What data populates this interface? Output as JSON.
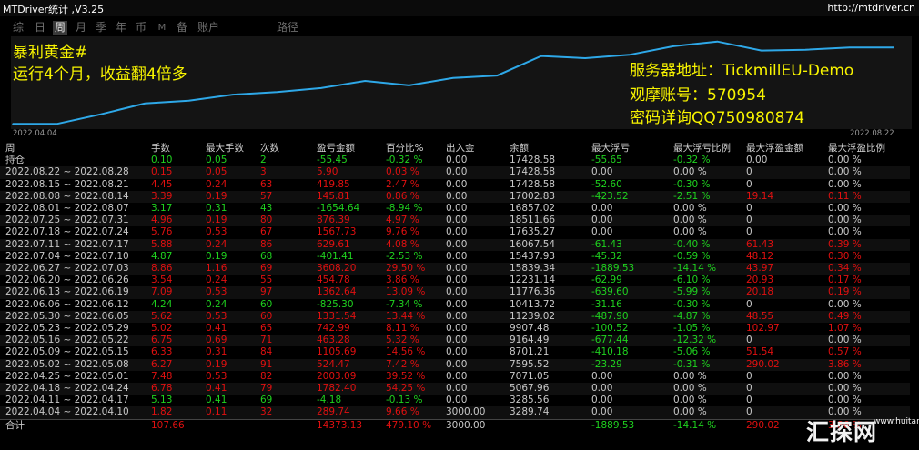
{
  "window": {
    "title": "MTDriver统计 ,V3.25",
    "url": "http://mtdriver.cn"
  },
  "tabs": [
    {
      "label": "综",
      "active": false
    },
    {
      "label": "日",
      "active": false
    },
    {
      "label": "周",
      "active": true
    },
    {
      "label": "月",
      "active": false
    },
    {
      "label": "季",
      "active": false
    },
    {
      "label": "年",
      "active": false
    },
    {
      "label": "币",
      "active": false
    },
    {
      "label": "M",
      "active": false
    },
    {
      "label": "备",
      "active": false
    },
    {
      "label": "账户",
      "active": false
    },
    {
      "label": "路径",
      "active": false
    }
  ],
  "chart": {
    "line_color": "#2ea8e8",
    "start_date": "2022.04.04",
    "end_date": "2022.08.22",
    "annotation_left": [
      "暴利黄金#",
      "运行4个月，收益翻4倍多"
    ],
    "annotation_right": [
      "服务器地址：TickmillEU-Demo",
      "观摩账号：570954",
      "密码详询QQ750980874"
    ]
  },
  "chart_data": {
    "type": "line",
    "title": "",
    "x": [
      "2022.04.04",
      "2022.04.11",
      "2022.04.18",
      "2022.04.25",
      "2022.05.02",
      "2022.05.09",
      "2022.05.16",
      "2022.05.23",
      "2022.05.30",
      "2022.06.06",
      "2022.06.13",
      "2022.06.20",
      "2022.06.27",
      "2022.07.04",
      "2022.07.11",
      "2022.07.18",
      "2022.07.25",
      "2022.08.01",
      "2022.08.08",
      "2022.08.15",
      "2022.08.22"
    ],
    "series": [
      {
        "values": [
          3289.74,
          3285.56,
          5067.96,
          7071.05,
          7595.52,
          8701.21,
          9164.49,
          9907.48,
          11239.02,
          10413.72,
          11776.36,
          12231.14,
          15839.34,
          15437.93,
          16067.54,
          17635.27,
          18511.66,
          16857.02,
          17002.83,
          17428.58,
          17428.58
        ]
      }
    ]
  },
  "table": {
    "headers": [
      "周",
      "手数",
      "最大手数",
      "次数",
      "盈亏金额",
      "百分比%",
      "出入金",
      "余额",
      "最大浮亏",
      "最大浮亏比例",
      "最大浮盈金额",
      "最大浮盈比例"
    ],
    "rows": [
      {
        "c": [
          "持仓",
          "0.10",
          "0.05",
          "2",
          "-55.45",
          "-0.32 %",
          "0.00",
          "17428.58",
          "-55.65",
          "-0.32 %",
          "0.00",
          "0.00 %"
        ],
        "t": "neg"
      },
      {
        "c": [
          "2022.08.22 ~ 2022.08.28",
          "0.15",
          "0.05",
          "3",
          "5.90",
          "0.03 %",
          "0.00",
          "17428.58",
          "0.00",
          "0.00 %",
          "0",
          "0.00 %"
        ],
        "t": "pos"
      },
      {
        "c": [
          "2022.08.15 ~ 2022.08.21",
          "4.45",
          "0.24",
          "63",
          "419.85",
          "2.47 %",
          "0.00",
          "17428.58",
          "-52.60",
          "-0.30 %",
          "0",
          "0.00 %"
        ],
        "t": "pos"
      },
      {
        "c": [
          "2022.08.08 ~ 2022.08.14",
          "3.39",
          "0.19",
          "57",
          "145.81",
          "0.86 %",
          "0.00",
          "17002.83",
          "-423.52",
          "-2.51 %",
          "19.14",
          "0.11 %"
        ],
        "t": "pos"
      },
      {
        "c": [
          "2022.08.01 ~ 2022.08.07",
          "3.17",
          "0.31",
          "43",
          "-1654.64",
          "-8.94 %",
          "0.00",
          "16857.02",
          "0.00",
          "0.00 %",
          "0",
          "0.00 %"
        ],
        "t": "neg"
      },
      {
        "c": [
          "2022.07.25 ~ 2022.07.31",
          "4.96",
          "0.19",
          "80",
          "876.39",
          "4.97 %",
          "0.00",
          "18511.66",
          "0.00",
          "0.00 %",
          "0",
          "0.00 %"
        ],
        "t": "pos"
      },
      {
        "c": [
          "2022.07.18 ~ 2022.07.24",
          "5.76",
          "0.53",
          "67",
          "1567.73",
          "9.76 %",
          "0.00",
          "17635.27",
          "0.00",
          "0.00 %",
          "0",
          "0.00 %"
        ],
        "t": "pos"
      },
      {
        "c": [
          "2022.07.11 ~ 2022.07.17",
          "5.88",
          "0.24",
          "86",
          "629.61",
          "4.08 %",
          "0.00",
          "16067.54",
          "-61.43",
          "-0.40 %",
          "61.43",
          "0.39 %"
        ],
        "t": "pos"
      },
      {
        "c": [
          "2022.07.04 ~ 2022.07.10",
          "4.87",
          "0.19",
          "68",
          "-401.41",
          "-2.53 %",
          "0.00",
          "15437.93",
          "-45.32",
          "-0.59 %",
          "48.12",
          "0.30 %"
        ],
        "t": "neg"
      },
      {
        "c": [
          "2022.06.27 ~ 2022.07.03",
          "8.86",
          "1.16",
          "69",
          "3608.20",
          "29.50 %",
          "0.00",
          "15839.34",
          "-1889.53",
          "-14.14 %",
          "43.97",
          "0.34 %"
        ],
        "t": "pos"
      },
      {
        "c": [
          "2022.06.20 ~ 2022.06.26",
          "3.54",
          "0.24",
          "55",
          "454.78",
          "3.86 %",
          "0.00",
          "12231.14",
          "-62.99",
          "-6.10 %",
          "20.93",
          "0.17 %"
        ],
        "t": "pos"
      },
      {
        "c": [
          "2022.06.13 ~ 2022.06.19",
          "7.09",
          "0.53",
          "97",
          "1362.64",
          "13.09 %",
          "0.00",
          "11776.36",
          "-639.60",
          "-5.99 %",
          "20.18",
          "0.19 %"
        ],
        "t": "pos"
      },
      {
        "c": [
          "2022.06.06 ~ 2022.06.12",
          "4.24",
          "0.24",
          "60",
          "-825.30",
          "-7.34 %",
          "0.00",
          "10413.72",
          "-31.16",
          "-0.30 %",
          "0",
          "0.00 %"
        ],
        "t": "neg"
      },
      {
        "c": [
          "2022.05.30 ~ 2022.06.05",
          "5.62",
          "0.53",
          "60",
          "1331.54",
          "13.44 %",
          "0.00",
          "11239.02",
          "-487.90",
          "-4.87 %",
          "48.55",
          "0.49 %"
        ],
        "t": "pos"
      },
      {
        "c": [
          "2022.05.23 ~ 2022.05.29",
          "5.02",
          "0.41",
          "65",
          "742.99",
          "8.11 %",
          "0.00",
          "9907.48",
          "-100.52",
          "-1.05 %",
          "102.97",
          "1.07 %"
        ],
        "t": "pos"
      },
      {
        "c": [
          "2022.05.16 ~ 2022.05.22",
          "6.75",
          "0.69",
          "71",
          "463.28",
          "5.32 %",
          "0.00",
          "9164.49",
          "-677.44",
          "-12.32 %",
          "0",
          "0.00 %"
        ],
        "t": "pos"
      },
      {
        "c": [
          "2022.05.09 ~ 2022.05.15",
          "6.33",
          "0.31",
          "84",
          "1105.69",
          "14.56 %",
          "0.00",
          "8701.21",
          "-410.18",
          "-5.06 %",
          "51.54",
          "0.57 %"
        ],
        "t": "pos"
      },
      {
        "c": [
          "2022.05.02 ~ 2022.05.08",
          "6.27",
          "0.19",
          "91",
          "524.47",
          "7.42 %",
          "0.00",
          "7595.52",
          "-23.29",
          "-0.31 %",
          "290.02",
          "3.86 %"
        ],
        "t": "pos"
      },
      {
        "c": [
          "2022.04.25 ~ 2022.05.01",
          "7.48",
          "0.53",
          "82",
          "2003.09",
          "39.52 %",
          "0.00",
          "7071.05",
          "0.00",
          "0.00 %",
          "0",
          "0.00 %"
        ],
        "t": "pos"
      },
      {
        "c": [
          "2022.04.18 ~ 2022.04.24",
          "6.78",
          "0.41",
          "79",
          "1782.40",
          "54.25 %",
          "0.00",
          "5067.96",
          "0.00",
          "0.00 %",
          "0",
          "0.00 %"
        ],
        "t": "pos"
      },
      {
        "c": [
          "2022.04.11 ~ 2022.04.17",
          "5.13",
          "0.41",
          "69",
          "-4.18",
          "-0.13 %",
          "0.00",
          "3285.56",
          "0.00",
          "0.00 %",
          "0",
          "0.00 %"
        ],
        "t": "neg"
      },
      {
        "c": [
          "2022.04.04 ~ 2022.04.10",
          "1.82",
          "0.11",
          "32",
          "289.74",
          "9.66 %",
          "3000.00",
          "3289.74",
          "0.00",
          "0.00 %",
          "0",
          "0.00 %"
        ],
        "t": "pos"
      }
    ],
    "total": [
      "合计",
      "107.66",
      "",
      "",
      "14373.13",
      "479.10 %",
      "3000.00",
      "",
      "-1889.53",
      "-14.14 %",
      "290.02",
      "3.86 %"
    ]
  },
  "watermark": {
    "text": "汇探网",
    "small": "www.huitan.cn"
  }
}
